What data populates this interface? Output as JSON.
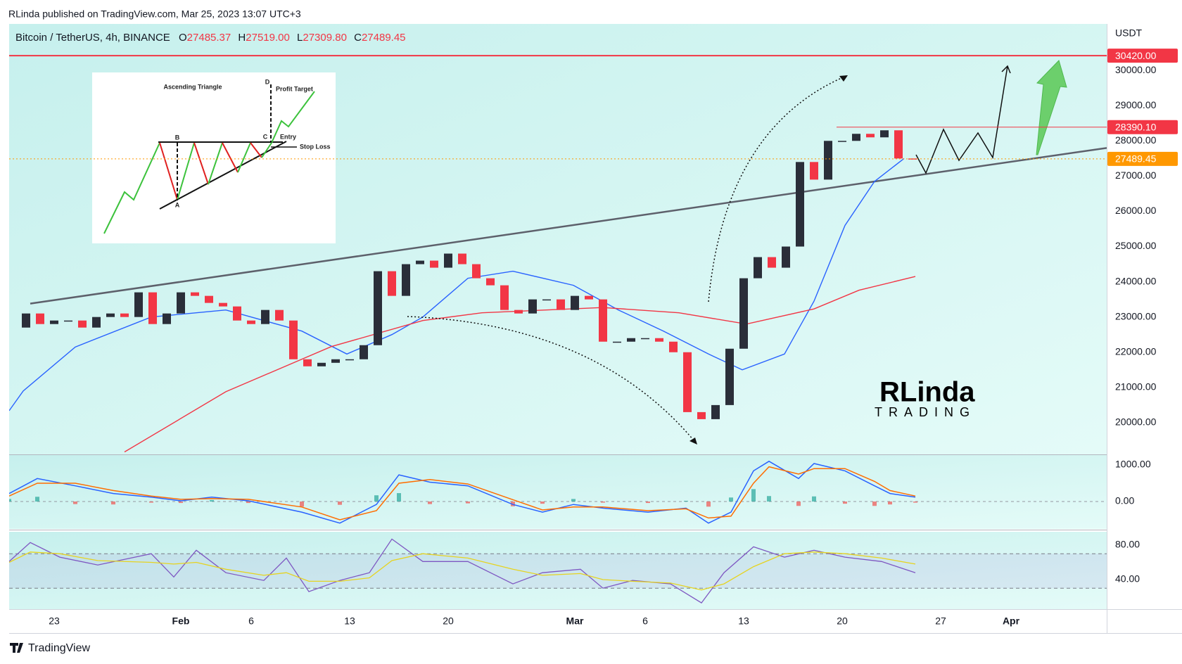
{
  "header": {
    "publisher": "RLinda published on TradingView.com, Mar 25, 2023 13:07 UTC+3"
  },
  "chart_data": {
    "type": "candlestick",
    "title": "Bitcoin / TetherUS, 4h, BINANCE",
    "ohlc_labels": [
      "O",
      "H",
      "L",
      "C"
    ],
    "ohlc_values": [
      "27485.37",
      "27519.00",
      "27309.80",
      "27489.45"
    ],
    "currency": "USDT",
    "up_color": "#2a2e39",
    "down_color": "#f23645",
    "x": [
      19,
      20,
      21,
      22,
      23,
      24,
      25,
      26,
      27,
      28,
      29,
      30,
      31,
      32,
      33,
      34,
      35,
      36,
      37,
      38,
      39,
      40,
      41,
      42,
      43,
      44,
      45,
      46,
      47,
      48,
      49,
      50,
      51,
      52,
      53,
      54,
      55,
      56,
      57,
      58,
      59,
      60,
      61,
      62,
      63,
      64,
      65,
      66,
      67,
      68,
      69,
      70,
      71,
      72,
      73,
      74,
      75,
      76,
      77,
      78,
      79,
      80,
      81,
      82,
      83
    ],
    "values": [
      22700,
      23100,
      22800,
      22900,
      22900,
      22700,
      23000,
      23100,
      23000,
      23700,
      22800,
      23100,
      23700,
      23600,
      23400,
      23300,
      22900,
      22800,
      23200,
      22900,
      21800,
      21600,
      21700,
      21800,
      21800,
      22200,
      24300,
      23600,
      24500,
      24600,
      24400,
      24800,
      24500,
      24100,
      23900,
      23200,
      23100,
      23500,
      23500,
      23200,
      23600,
      23500,
      22300,
      22300,
      22400,
      22400,
      22300,
      22000,
      20300,
      20100,
      20500,
      22100,
      24100,
      24700,
      24400,
      25000,
      27400,
      26900,
      28000,
      28000,
      28200,
      28100,
      28300,
      27500,
      27489.45
    ],
    "xlim": [
      18.8,
      96.8
    ],
    "xticks": [
      {
        "value": 22,
        "label": "23"
      },
      {
        "value": 31,
        "label": "Feb"
      },
      {
        "value": 36,
        "label": "6"
      },
      {
        "value": 43,
        "label": "13"
      },
      {
        "value": 50,
        "label": "20"
      },
      {
        "value": 59,
        "label": "Mar"
      },
      {
        "value": 64,
        "label": "6"
      },
      {
        "value": 71,
        "label": "13"
      },
      {
        "value": 78,
        "label": "20"
      },
      {
        "value": 85,
        "label": "27"
      },
      {
        "value": 90,
        "label": "Apr"
      }
    ],
    "ylim": [
      19100,
      31320
    ],
    "yticks": [
      {
        "value": 20000,
        "label": "20000.00"
      },
      {
        "value": 21000,
        "label": "21000.00"
      },
      {
        "value": 22000,
        "label": "22000.00"
      },
      {
        "value": 23000,
        "label": "23000.00"
      },
      {
        "value": 24000,
        "label": "24000.00"
      },
      {
        "value": 25000,
        "label": "25000.00"
      },
      {
        "value": 26000,
        "label": "26000.00"
      },
      {
        "value": 27000,
        "label": "27000.00"
      },
      {
        "value": 28000,
        "label": "28000.00"
      },
      {
        "value": 29000,
        "label": "29000.00"
      },
      {
        "value": 30000,
        "label": "30000.00"
      }
    ],
    "overlays": [
      {
        "color": "#2962ff",
        "x": [
          18.8,
          19.8,
          23.5,
          28.9,
          34.2,
          39.6,
          42.8,
          46.0,
          48.2,
          51.4,
          54.6,
          58.9,
          62.1,
          65.3,
          68.5,
          70.9,
          73.9,
          76.0,
          78.2,
          80.3,
          82.4
        ],
        "values": [
          20340,
          20900,
          22150,
          23000,
          23200,
          22600,
          21950,
          22500,
          23000,
          24100,
          24300,
          23900,
          23200,
          22600,
          21950,
          21500,
          21950,
          23450,
          25600,
          26850,
          27500
        ]
      },
      {
        "color": "#f23645",
        "x": [
          27.0,
          34.2,
          41.7,
          48.2,
          52.4,
          61.0,
          66.4,
          71.2,
          76.0,
          79.2,
          83.2
        ],
        "values": [
          19170,
          20880,
          22160,
          22900,
          23120,
          23270,
          23120,
          22800,
          23230,
          23760,
          24150
        ]
      }
    ],
    "trendline": {
      "color": "#5d606b",
      "x": [
        20.3,
        96.8
      ],
      "values": [
        23380,
        27800
      ]
    },
    "levels": [
      {
        "value": 30420,
        "label": "30420.00",
        "color": "#f23645"
      },
      {
        "value": 28390.1,
        "label": "28390.10",
        "color": "#f23645",
        "from": 77.6
      },
      {
        "value": 27489.45,
        "label": "27489.45",
        "color": "#ff9800"
      }
    ],
    "macd": {
      "type": "line",
      "x": [
        18.8,
        20.8,
        23.5,
        26.2,
        28.9,
        31.0,
        33.2,
        35.8,
        39.6,
        42.3,
        44.9,
        46.5,
        48.7,
        51.4,
        54.6,
        56.7,
        58.9,
        61.0,
        64.2,
        66.9,
        68.5,
        70.1,
        71.7,
        72.8,
        74.9,
        76.0,
        78.2,
        80.3,
        81.4,
        83.2
      ],
      "series": [
        {
          "color": "#2962ff",
          "values": [
            220,
            630,
            430,
            220,
            120,
            20,
            120,
            20,
            -290,
            -590,
            -80,
            730,
            530,
            430,
            -80,
            -290,
            -80,
            -180,
            -290,
            -180,
            -590,
            -290,
            840,
            1100,
            630,
            1040,
            840,
            430,
            220,
            120
          ]
        },
        {
          "color": "#ff6d00",
          "values": [
            150,
            500,
            500,
            300,
            150,
            60,
            80,
            60,
            -150,
            -500,
            -250,
            500,
            600,
            480,
            50,
            -230,
            -150,
            -150,
            -250,
            -200,
            -450,
            -400,
            500,
            950,
            750,
            900,
            900,
            550,
            300,
            150
          ]
        }
      ],
      "histogram": {
        "up_color": "#26a69a",
        "down_color": "#ef5350",
        "values": [
          70,
          130,
          -70,
          -80,
          -30,
          -40,
          40,
          -40,
          -140,
          -90,
          170,
          230,
          -70,
          -50,
          -130,
          -60,
          70,
          -30,
          -40,
          20,
          -140,
          110,
          340,
          150,
          -120,
          140,
          -60,
          -120,
          -80,
          -30
        ]
      },
      "ylim": [
        -750,
        1270
      ],
      "yticks": [
        {
          "value": 0,
          "label": "0.00"
        },
        {
          "value": 1000,
          "label": "1000.00"
        }
      ]
    },
    "rsi": {
      "type": "line",
      "x": [
        18.8,
        20.3,
        22.4,
        25.1,
        28.9,
        30.5,
        32.1,
        34.2,
        36.9,
        38.5,
        40.1,
        42.3,
        44.4,
        46.0,
        48.2,
        51.4,
        54.6,
        56.7,
        59.4,
        61.0,
        63.1,
        65.8,
        68.0,
        69.6,
        71.7,
        73.9,
        76.0,
        78.2,
        80.8,
        83.2
      ],
      "series": [
        {
          "color": "#7e57c2",
          "values": [
            61,
            83,
            66,
            57,
            70,
            43,
            74,
            48,
            39,
            65,
            26,
            39,
            48,
            87,
            61,
            61,
            35,
            48,
            52,
            30,
            39,
            35,
            13,
            48,
            78,
            66,
            74,
            66,
            61,
            48
          ]
        },
        {
          "color": "#e6d320",
          "values": [
            60,
            72,
            70,
            62,
            60,
            58,
            60,
            52,
            45,
            48,
            38,
            38,
            42,
            62,
            70,
            65,
            52,
            45,
            47,
            40,
            38,
            36,
            28,
            35,
            55,
            70,
            72,
            70,
            65,
            58
          ]
        }
      ],
      "bands": [
        30,
        70
      ],
      "ylim": [
        5.7,
        95.5
      ],
      "yticks": [
        {
          "value": 40,
          "label": "40.00"
        },
        {
          "value": 80,
          "label": "80.00"
        }
      ]
    }
  },
  "inset": {
    "title": "Ascending Triangle",
    "profit_target": "Profit Target",
    "entry": "Entry",
    "stop_loss": "Stop Loss",
    "points": [
      "A",
      "B",
      "C",
      "D"
    ]
  },
  "logo": {
    "name": "RLinda",
    "sub": "TRADING"
  },
  "footer": {
    "brand": "TradingView"
  }
}
